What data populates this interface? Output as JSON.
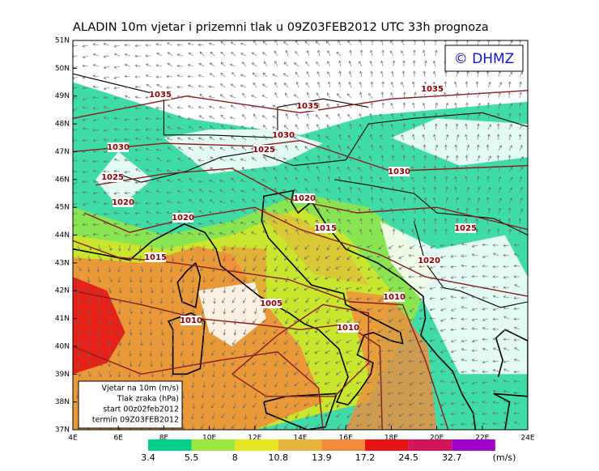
{
  "header": {
    "title": "ALADIN  10m  vjetar  i  prizemni  tlak  u  09Z03FEB2012  UTC  33h  prognoza"
  },
  "logo": "© DHMZ",
  "map": {
    "lat_labels": [
      "51N",
      "50N",
      "49N",
      "48N",
      "47N",
      "46N",
      "45N",
      "44N",
      "43N",
      "42N",
      "41N",
      "40N",
      "39N",
      "38N",
      "37N"
    ],
    "lon_labels": [
      "4E",
      "6E",
      "8E",
      "10E",
      "12E",
      "14E",
      "16E",
      "18E",
      "20E",
      "22E",
      "24E"
    ],
    "isobars": [
      "1035",
      "1035",
      "1035",
      "1030",
      "1030",
      "1025",
      "1030",
      "1025",
      "1020",
      "1020",
      "1020",
      "1015",
      "1025",
      "1015",
      "1020",
      "1005",
      "1010",
      "1010",
      "1010"
    ]
  },
  "info_box": [
    "Vjetar na 10m (m/s)",
    "Tlak zraka (hPa)",
    "start 00z02feb2012",
    "termin 09Z03FEB2012"
  ],
  "colorbar": {
    "colors": [
      "#00d08a",
      "#9be63c",
      "#e6e61e",
      "#e6b43c",
      "#f08c3c",
      "#e61414",
      "#d2145a",
      "#a000c8"
    ],
    "labels": [
      "3.4",
      "5.5",
      "8",
      "10.8",
      "13.9",
      "17.2",
      "24.5",
      "32.7"
    ],
    "unit": "(m/s)"
  }
}
